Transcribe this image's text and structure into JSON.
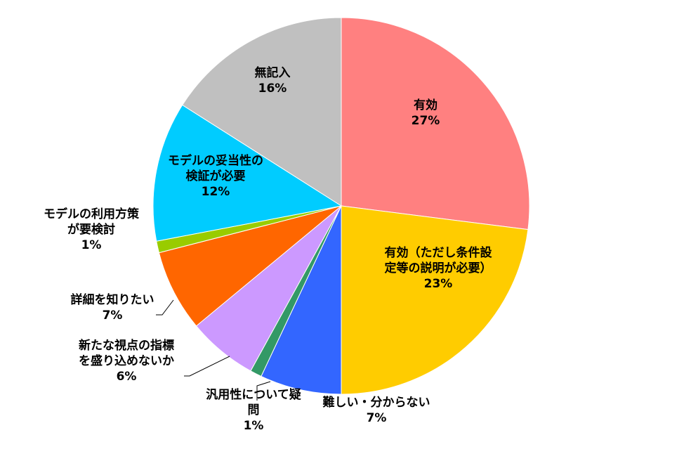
{
  "chart_data": {
    "type": "pie",
    "title": "",
    "slices": [
      {
        "label_lines": [
          "有効"
        ],
        "value_label": "27%",
        "value": 27,
        "color": "#ff8080"
      },
      {
        "label_lines": [
          "有効（ただし条件設",
          "定等の説明が必要）"
        ],
        "value_label": "23%",
        "value": 23,
        "color": "#ffcc00"
      },
      {
        "label_lines": [
          "難しい・分からない"
        ],
        "value_label": "7%",
        "value": 7,
        "color": "#3366ff"
      },
      {
        "label_lines": [
          "汎用性について疑",
          "問"
        ],
        "value_label": "1%",
        "value": 1,
        "color": "#339966"
      },
      {
        "label_lines": [
          "新たな視点の指標",
          "を盛り込めないか"
        ],
        "value_label": "6%",
        "value": 6,
        "color": "#cc99ff"
      },
      {
        "label_lines": [
          "詳細を知りたい"
        ],
        "value_label": "7%",
        "value": 7,
        "color": "#ff6600"
      },
      {
        "label_lines": [
          "モデルの利用方策",
          "が要検討"
        ],
        "value_label": "1%",
        "value": 1,
        "color": "#99cc00"
      },
      {
        "label_lines": [
          "モデルの妥当性の",
          "検証が必要"
        ],
        "value_label": "12%",
        "value": 12,
        "color": "#00ccff"
      },
      {
        "label_lines": [
          "無記入"
        ],
        "value_label": "16%",
        "value": 16,
        "color": "#c0c0c0"
      }
    ]
  }
}
